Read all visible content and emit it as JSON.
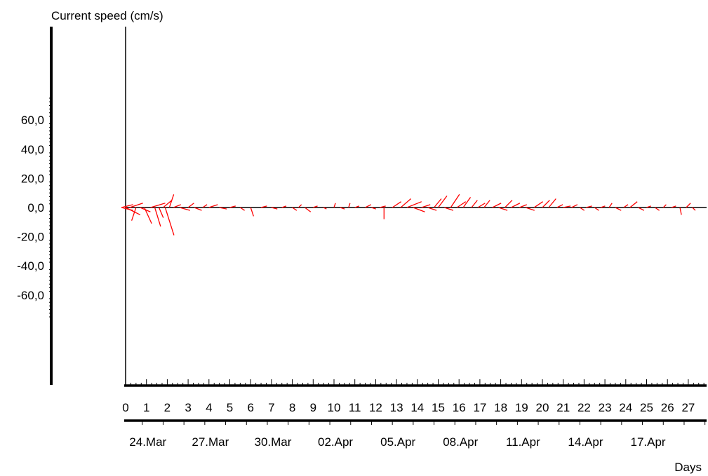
{
  "chart_data": {
    "type": "stick_plot",
    "ylabel": "Current speed (cm/s)",
    "xlabel": "Days",
    "ylim": [
      -100,
      100
    ],
    "xlim": [
      0,
      28
    ],
    "y_ticks": [
      "60,0",
      "40,0",
      "20,0",
      "0,0",
      "-20,0",
      "-40,0",
      "-60,0"
    ],
    "y_tick_values": [
      60,
      40,
      20,
      0,
      -20,
      -40,
      -60
    ],
    "day_ticks": [
      "0",
      "1",
      "2",
      "3",
      "4",
      "5",
      "6",
      "7",
      "8",
      "9",
      "10",
      "11",
      "12",
      "13",
      "14",
      "15",
      "16",
      "17",
      "18",
      "19",
      "20",
      "21",
      "22",
      "23",
      "24",
      "25",
      "26",
      "27"
    ],
    "date_labels": [
      "24.Mar",
      "27.Mar",
      "30.Mar",
      "02.Apr",
      "05.Apr",
      "08.Apr",
      "11.Apr",
      "14.Apr",
      "17.Apr"
    ],
    "date_days": [
      0.8,
      3.8,
      6.8,
      9.8,
      12.8,
      15.8,
      18.8,
      21.8,
      24.8
    ],
    "series": [
      {
        "color": "#ff0000",
        "vectors": [
          [
            -0.2,
            8,
            2
          ],
          [
            -0.2,
            8,
            -2
          ],
          [
            0.0,
            10,
            -5
          ],
          [
            0.2,
            9,
            3
          ],
          [
            0.5,
            -3,
            -9
          ],
          [
            0.7,
            7,
            -3
          ],
          [
            0.9,
            5,
            -11
          ],
          [
            1.2,
            10,
            3
          ],
          [
            1.4,
            4,
            -13
          ],
          [
            1.6,
            3,
            -7
          ],
          [
            1.8,
            6,
            5
          ],
          [
            1.9,
            6,
            -19
          ],
          [
            2.1,
            3,
            9
          ],
          [
            2.3,
            5,
            2
          ],
          [
            2.6,
            7,
            -2
          ],
          [
            3.0,
            4,
            3
          ],
          [
            3.3,
            5,
            -2
          ],
          [
            3.7,
            3,
            2
          ],
          [
            4.0,
            6,
            2
          ],
          [
            4.5,
            5,
            -1
          ],
          [
            5.0,
            4,
            1
          ],
          [
            5.5,
            3,
            -2
          ],
          [
            6.0,
            2,
            -6
          ],
          [
            6.5,
            4,
            1
          ],
          [
            7.0,
            4,
            -1
          ],
          [
            7.5,
            3,
            1
          ],
          [
            8.0,
            3,
            -2
          ],
          [
            8.3,
            2,
            2
          ],
          [
            8.6,
            4,
            -3
          ],
          [
            9.0,
            3,
            1
          ],
          [
            9.5,
            2,
            -1
          ],
          [
            10.0,
            1,
            3
          ],
          [
            10.3,
            3,
            -1
          ],
          [
            10.7,
            1,
            3
          ],
          [
            11.0,
            3,
            1
          ],
          [
            11.5,
            4,
            2
          ],
          [
            11.8,
            3,
            -1
          ],
          [
            12.2,
            4,
            1
          ],
          [
            12.4,
            0,
            -8
          ],
          [
            12.8,
            6,
            4
          ],
          [
            13.2,
            7,
            6
          ],
          [
            13.5,
            10,
            4
          ],
          [
            13.8,
            8,
            -3
          ],
          [
            14.2,
            6,
            2
          ],
          [
            14.5,
            6,
            -2
          ],
          [
            14.8,
            5,
            6
          ],
          [
            15.0,
            6,
            8
          ],
          [
            15.3,
            6,
            -2
          ],
          [
            15.6,
            6,
            9
          ],
          [
            15.9,
            6,
            4
          ],
          [
            16.2,
            5,
            7
          ],
          [
            16.6,
            4,
            5
          ],
          [
            16.9,
            5,
            3
          ],
          [
            17.2,
            4,
            5
          ],
          [
            17.6,
            6,
            3
          ],
          [
            17.9,
            6,
            -2
          ],
          [
            18.2,
            5,
            5
          ],
          [
            18.5,
            6,
            3
          ],
          [
            18.9,
            5,
            2
          ],
          [
            19.2,
            6,
            -2
          ],
          [
            19.6,
            6,
            4
          ],
          [
            20.0,
            5,
            5
          ],
          [
            20.3,
            5,
            6
          ],
          [
            20.7,
            4,
            2
          ],
          [
            21.0,
            5,
            1
          ],
          [
            21.4,
            4,
            2
          ],
          [
            21.8,
            3,
            -2
          ],
          [
            22.1,
            4,
            1
          ],
          [
            22.5,
            3,
            -2
          ],
          [
            22.8,
            3,
            1
          ],
          [
            23.2,
            2,
            3
          ],
          [
            23.5,
            4,
            -2
          ],
          [
            23.9,
            3,
            2
          ],
          [
            24.2,
            5,
            4
          ],
          [
            24.6,
            4,
            -2
          ],
          [
            25.0,
            3,
            1
          ],
          [
            25.4,
            3,
            -2
          ],
          [
            25.8,
            2,
            2
          ],
          [
            26.2,
            3,
            1
          ],
          [
            26.6,
            1,
            -5
          ],
          [
            26.9,
            3,
            3
          ],
          [
            27.2,
            2,
            -2
          ]
        ]
      }
    ]
  }
}
